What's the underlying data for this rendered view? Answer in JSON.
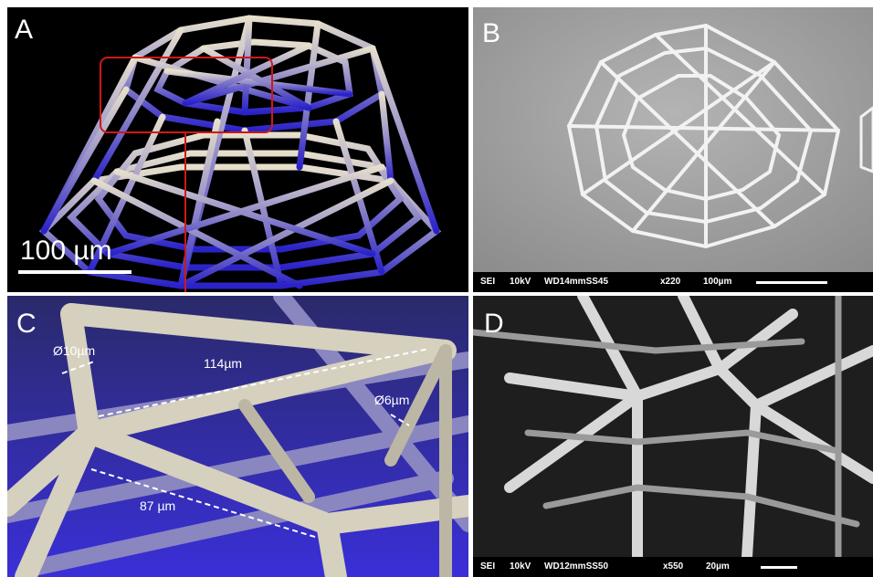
{
  "panels": {
    "a": {
      "letter": "A",
      "scale_label": "100 µm"
    },
    "b": {
      "letter": "B",
      "sem": {
        "detector": "SEI",
        "voltage": "10kV",
        "working_distance": "WD14mmSS45",
        "magnification": "x220",
        "scale": "100µm"
      }
    },
    "c": {
      "letter": "C",
      "dims": {
        "d10": "Ø10µm",
        "len114": "114µm",
        "d6": "Ø6µm",
        "len87": "87 µm"
      }
    },
    "d": {
      "letter": "D",
      "sem": {
        "detector": "SEI",
        "voltage": "10kV",
        "working_distance": "WD12mmSS50",
        "magnification": "x550",
        "scale": "20µm"
      }
    }
  },
  "colors": {
    "render_blue": "#3a2fd8",
    "render_beige": "#d9d2c0",
    "highlight_red": "#d01818"
  }
}
